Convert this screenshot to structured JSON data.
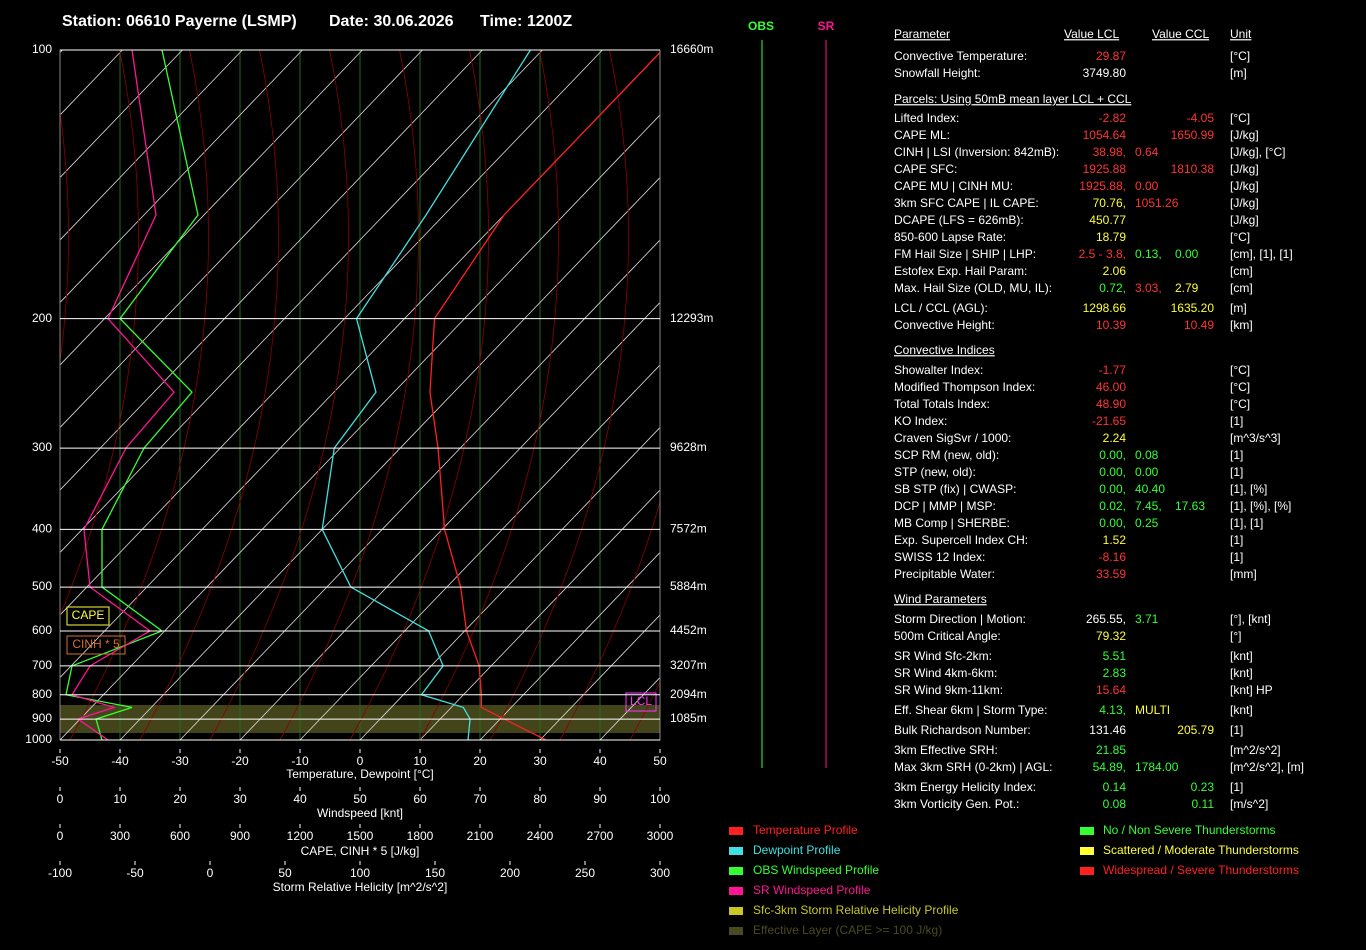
{
  "header": {
    "station": "Station: 06610 Payerne (LSMP)",
    "date": "Date: 30.06.2026",
    "time": "Time: 1200Z"
  },
  "sounding": {
    "plim": [
      100,
      1000
    ],
    "pressure_ticks": [
      100,
      200,
      300,
      400,
      500,
      600,
      700,
      800,
      900,
      1000
    ],
    "height_labels": [
      "16660m",
      "12293m",
      "9628m",
      "7572m",
      "5884m",
      "4452m",
      "3207m",
      "2094m",
      "1085m",
      null
    ],
    "temperature_axis": {
      "label": "Temperature, Dewpoint [°C]",
      "lim": [
        -50,
        50
      ],
      "ticks": [
        -50,
        -40,
        -30,
        -20,
        -10,
        0,
        10,
        20,
        30,
        40,
        50
      ]
    },
    "windspeed_axis": {
      "label": "Windspeed [knt]",
      "lim": [
        0,
        100
      ],
      "ticks": [
        0,
        10,
        20,
        30,
        40,
        50,
        60,
        70,
        80,
        90,
        100
      ]
    },
    "cape_axis": {
      "label": "CAPE, CINH * 5 [J/kg]",
      "lim": [
        0,
        3000
      ],
      "ticks": [
        0,
        300,
        600,
        900,
        1200,
        1500,
        1800,
        2100,
        2400,
        2700,
        3000
      ]
    },
    "srh_axis": {
      "label": "Storm Relative Helicity [m^2/s^2]",
      "lim": [
        -100,
        300
      ],
      "ticks": [
        -100,
        -50,
        0,
        50,
        100,
        150,
        200,
        250,
        300
      ]
    },
    "pressure": [
      1000,
      900,
      850,
      800,
      700,
      600,
      500,
      400,
      300,
      250,
      200,
      150,
      100
    ],
    "temperature": {
      "color": "#ff2020",
      "values": [
        31,
        20.7,
        15,
        13,
        8,
        0.3,
        -7.7,
        -19.6,
        -33.7,
        -44,
        -55,
        -60,
        -60
      ]
    },
    "dewpoint": {
      "color": "#40e0e0",
      "values": [
        18,
        15,
        12,
        3,
        2,
        -6,
        -26,
        -40,
        -51,
        -53,
        -68,
        -73,
        -82
      ]
    },
    "obs_wind": {
      "color": "#33ff33",
      "values": [
        7,
        6,
        12,
        1,
        2,
        17,
        7,
        7,
        14,
        22,
        10,
        23,
        17
      ]
    },
    "sr_wind": {
      "color": "#ff1493",
      "values": [
        8,
        3,
        9,
        2,
        5,
        15,
        5,
        4,
        11,
        19,
        8,
        16,
        12
      ]
    },
    "badges": {
      "cape": "CAPE",
      "cinh": "CINH * 5",
      "lcl": "LCL"
    },
    "wind_columns": {
      "obs": "OBS",
      "sr": "SR"
    }
  },
  "table": {
    "header": [
      "Parameter",
      "Value LCL",
      "Value CCL",
      "Unit"
    ],
    "rows": [
      {
        "label": "Convective Temperature:",
        "lcl": [
          {
            "text": "29.87",
            "color": "#ff3333"
          }
        ],
        "unit": "[°C]"
      },
      {
        "label": "Snowfall Height:",
        "lcl": [
          {
            "text": "3749.80",
            "color": "#ffffff"
          }
        ],
        "unit": "[m]"
      }
    ],
    "sections": [
      {
        "title": "Parcels: Using 50mB mean layer LCL + CCL",
        "rows": [
          {
            "label": "Lifted Index:",
            "lcl": [
              {
                "text": "-2.82",
                "color": "#ff3333"
              }
            ],
            "ccl": [
              {
                "text": "-4.05",
                "color": "#ff3333"
              }
            ],
            "unit": "[°C]"
          },
          {
            "label": "CAPE ML:",
            "lcl": [
              {
                "text": "1054.64",
                "color": "#ff3333"
              }
            ],
            "ccl": [
              {
                "text": "1650.99",
                "color": "#ff3333"
              }
            ],
            "unit": "[J/kg]"
          },
          {
            "label": "CINH | LSI (Inversion: 842mB):",
            "lcl": [
              {
                "text": "38.98,",
                "color": "#ff3333"
              },
              {
                "text": "0.64",
                "color": "#ff3333"
              }
            ],
            "unit": "[J/kg], [°C]"
          },
          {
            "label": "CAPE SFC:",
            "lcl": [
              {
                "text": "1925.88",
                "color": "#ff3333"
              }
            ],
            "ccl": [
              {
                "text": "1810.38",
                "color": "#ff3333"
              }
            ],
            "unit": "[J/kg]"
          },
          {
            "label": "CAPE MU | CINH MU:",
            "lcl": [
              {
                "text": "1925.88,",
                "color": "#ff3333"
              },
              {
                "text": "0.00",
                "color": "#ff3333"
              }
            ],
            "unit": "[J/kg]"
          },
          {
            "label": "3km SFC CAPE | IL CAPE:",
            "lcl": [
              {
                "text": "70.76,",
                "color": "#ffff33"
              },
              {
                "text": "1051.26",
                "color": "#ff3333"
              }
            ],
            "unit": "[J/kg]"
          },
          {
            "label": "DCAPE (LFS = 626mB):",
            "lcl": [
              {
                "text": "450.77",
                "color": "#ffff33"
              }
            ],
            "unit": "[J/kg]"
          },
          {
            "label": "850-600 Lapse Rate:",
            "lcl": [
              {
                "text": "18.79",
                "color": "#ffff33"
              }
            ],
            "unit": "[°C]"
          },
          {
            "label": "FM Hail Size | SHIP | LHP:",
            "lcl": [
              {
                "text": "2.5 - 3.8,",
                "color": "#ff3333"
              },
              {
                "text": "0.13,",
                "color": "#33ff33"
              },
              {
                "text": "0.00",
                "color": "#33ff33"
              }
            ],
            "unit": "[cm], [1], [1]"
          },
          {
            "label": "Estofex Exp. Hail Param:",
            "lcl": [
              {
                "text": "2.06",
                "color": "#ffff33"
              }
            ],
            "unit": "[cm]"
          },
          {
            "label": "Max. Hail Size (OLD, MU, IL):",
            "lcl": [
              {
                "text": "0.72,",
                "color": "#33ff33"
              },
              {
                "text": "3.03,",
                "color": "#ff3333"
              },
              {
                "text": "2.79",
                "color": "#ffff33"
              }
            ],
            "unit": "[cm]"
          },
          {
            "label": "LCL / CCL (AGL):",
            "lcl": [
              {
                "text": "1298.66",
                "color": "#ffff33"
              }
            ],
            "ccl": [
              {
                "text": "1635.20",
                "color": "#ffff33"
              }
            ],
            "unit": "[m]"
          },
          {
            "label": "Convective Height:",
            "lcl": [
              {
                "text": "10.39",
                "color": "#ff3333"
              }
            ],
            "ccl": [
              {
                "text": "10.49",
                "color": "#ff3333"
              }
            ],
            "unit": "[km]"
          }
        ]
      },
      {
        "title": "Convective Indices",
        "rows": [
          {
            "label": "Showalter Index:",
            "lcl": [
              {
                "text": "-1.77",
                "color": "#ff3333"
              }
            ],
            "unit": "[°C]"
          },
          {
            "label": "Modified Thompson Index:",
            "lcl": [
              {
                "text": "46.00",
                "color": "#ff3333"
              }
            ],
            "unit": "[°C]"
          },
          {
            "label": "Total Totals Index:",
            "lcl": [
              {
                "text": "48.90",
                "color": "#ff3333"
              }
            ],
            "unit": "[°C]"
          },
          {
            "label": "KO Index:",
            "lcl": [
              {
                "text": "-21.65",
                "color": "#ff3333"
              }
            ],
            "unit": "[1]"
          },
          {
            "label": "Craven SigSvr / 1000:",
            "lcl": [
              {
                "text": "2.24",
                "color": "#ffff33"
              }
            ],
            "unit": "[m^3/s^3]"
          },
          {
            "label": "SCP RM (new, old):",
            "lcl": [
              {
                "text": "0.00,",
                "color": "#33ff33"
              },
              {
                "text": "0.08",
                "color": "#33ff33"
              }
            ],
            "unit": "[1]"
          },
          {
            "label": "STP (new, old):",
            "lcl": [
              {
                "text": "0.00,",
                "color": "#33ff33"
              },
              {
                "text": "0.00",
                "color": "#33ff33"
              }
            ],
            "unit": "[1]"
          },
          {
            "label": "SB STP (fix) | CWASP:",
            "lcl": [
              {
                "text": "0.00,",
                "color": "#33ff33"
              },
              {
                "text": "40.40",
                "color": "#33ff33"
              }
            ],
            "unit": "[1], [%]"
          },
          {
            "label": "DCP | MMP | MSP:",
            "lcl": [
              {
                "text": "0.02,",
                "color": "#33ff33"
              },
              {
                "text": "7.45,",
                "color": "#33ff33"
              },
              {
                "text": "17.63",
                "color": "#33ff33"
              }
            ],
            "unit": "[1], [%], [%]"
          },
          {
            "label": "MB Comp | SHERBE:",
            "lcl": [
              {
                "text": "0.00,",
                "color": "#33ff33"
              },
              {
                "text": "0.25",
                "color": "#33ff33"
              }
            ],
            "unit": "[1], [1]"
          },
          {
            "label": "Exp. Supercell Index CH:",
            "lcl": [
              {
                "text": "1.52",
                "color": "#ffff33"
              }
            ],
            "unit": "[1]"
          },
          {
            "label": "SWISS 12 Index:",
            "lcl": [
              {
                "text": "-8.16",
                "color": "#ff3333"
              }
            ],
            "unit": "[1]"
          },
          {
            "label": "Precipitable Water:",
            "lcl": [
              {
                "text": "33.59",
                "color": "#ff3333"
              }
            ],
            "unit": "[mm]"
          }
        ]
      },
      {
        "title": "Wind Parameters",
        "rows": [
          {
            "label": "Storm Direction | Motion:",
            "lcl": [
              {
                "text": "265.55,",
                "color": "#ffffff"
              },
              {
                "text": "3.71",
                "color": "#33ff33"
              }
            ],
            "unit": "[°], [knt]"
          },
          {
            "label": "500m Critical Angle:",
            "lcl": [
              {
                "text": "79.32",
                "color": "#ffff33"
              }
            ],
            "unit": "[°]"
          },
          {
            "label": "SR Wind Sfc-2km:",
            "lcl": [
              {
                "text": "5.51",
                "color": "#33ff33"
              }
            ],
            "unit": "[knt]"
          },
          {
            "label": "SR Wind 4km-6km:",
            "lcl": [
              {
                "text": "2.83",
                "color": "#33ff33"
              }
            ],
            "unit": "[knt]"
          },
          {
            "label": "SR Wind 9km-11km:",
            "lcl": [
              {
                "text": "15.64",
                "color": "#ff3333"
              }
            ],
            "unit": "[knt] HP"
          },
          {
            "label": "Eff. Shear 6km | Storm Type:",
            "lcl": [
              {
                "text": "4.13,",
                "color": "#33ff33"
              },
              {
                "text": "MULTI",
                "color": "#ffff33"
              }
            ],
            "unit": "[knt]"
          },
          {
            "label": "Bulk Richardson Number:",
            "lcl": [
              {
                "text": "131.46",
                "color": "#ffffff"
              }
            ],
            "ccl": [
              {
                "text": "205.79",
                "color": "#ffff33"
              }
            ],
            "unit": "[1]"
          },
          {
            "label": "3km Effective SRH:",
            "lcl": [
              {
                "text": "21.85",
                "color": "#33ff33"
              }
            ],
            "unit": "[m^2/s^2]"
          },
          {
            "label": "Max 3km SRH (0-2km) | AGL:",
            "lcl": [
              {
                "text": "54.89,",
                "color": "#33ff33"
              },
              {
                "text": "1784.00",
                "color": "#33ff33"
              }
            ],
            "unit": "[m^2/s^2], [m]"
          },
          {
            "label": "3km Energy Helicity Index:",
            "lcl": [
              {
                "text": "0.14",
                "color": "#33ff33"
              }
            ],
            "ccl": [
              {
                "text": "0.23",
                "color": "#33ff33"
              }
            ],
            "unit": "[1]"
          },
          {
            "label": "3km Vorticity Gen. Pot.:",
            "lcl": [
              {
                "text": "0.08",
                "color": "#33ff33"
              }
            ],
            "ccl": [
              {
                "text": "0.11",
                "color": "#33ff33"
              }
            ],
            "unit": "[m/s^2]"
          }
        ]
      }
    ]
  },
  "legend": {
    "left": [
      {
        "text": "Temperature Profile",
        "color": "#ff2020"
      },
      {
        "text": "Dewpoint Profile",
        "color": "#40e0e0"
      },
      {
        "text": "OBS Windspeed Profile",
        "color": "#33ff33"
      },
      {
        "text": "SR Windspeed Profile",
        "color": "#ff1493"
      },
      {
        "text": "Sfc-3km Storm Relative Helicity Profile",
        "color": "#c8c820"
      },
      {
        "text": "Effective Layer (CAPE >= 100 J/kg)",
        "color": "#4a4a22"
      }
    ],
    "right": [
      {
        "text": "No / Non Severe Thunderstorms",
        "color": "#33ff33"
      },
      {
        "text": "Scattered / Moderate Thunderstorms",
        "color": "#ffff33"
      },
      {
        "text": "Widespread / Severe Thunderstorms",
        "color": "#ff2020"
      }
    ]
  }
}
